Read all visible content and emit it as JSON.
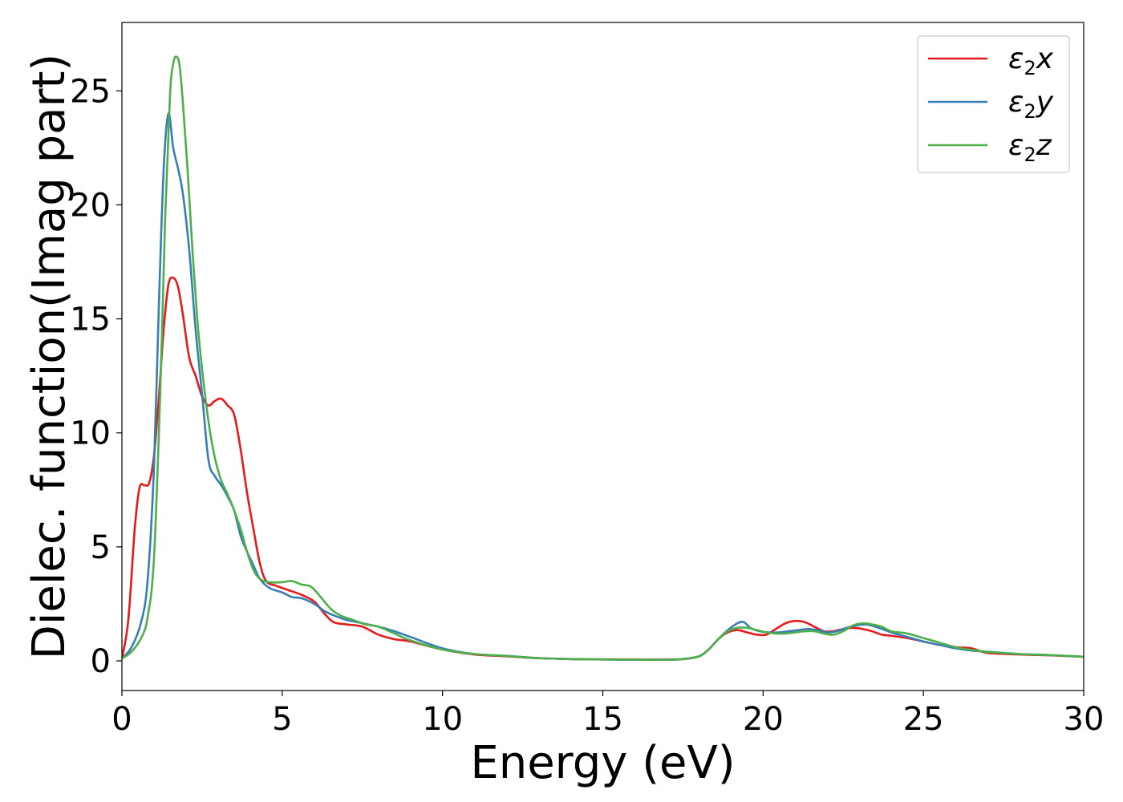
{
  "chart_data": {
    "type": "line",
    "xlabel": "Energy (eV)",
    "ylabel": "Dielec. function(Imag part)",
    "xlim": [
      0,
      30
    ],
    "ylim": [
      -1.3,
      28
    ],
    "xticks": [
      0,
      5,
      10,
      15,
      20,
      25,
      30
    ],
    "yticks": [
      0,
      5,
      10,
      15,
      20,
      25
    ],
    "grid": false,
    "legend_position": "top-right",
    "series": [
      {
        "name": "ε2x",
        "legend": {
          "base": "ε",
          "sub": "2",
          "var": "x"
        },
        "color": "#e41a1c",
        "x": [
          0,
          0.2,
          0.4,
          0.55,
          0.7,
          0.85,
          1.0,
          1.15,
          1.3,
          1.45,
          1.6,
          1.75,
          1.9,
          2.1,
          2.3,
          2.5,
          2.7,
          2.9,
          3.1,
          3.3,
          3.5,
          3.7,
          3.9,
          4.1,
          4.3,
          4.5,
          4.8,
          5.2,
          5.6,
          6.0,
          6.3,
          6.6,
          7.0,
          7.5,
          8.0,
          8.5,
          9.0,
          10,
          11,
          12,
          13,
          14,
          15,
          16,
          17,
          17.5,
          18,
          18.3,
          18.6,
          18.9,
          19.2,
          19.5,
          19.8,
          20.1,
          20.4,
          20.7,
          21.0,
          21.3,
          21.6,
          21.9,
          22.2,
          22.5,
          22.8,
          23.1,
          23.4,
          23.7,
          24.0,
          24.5,
          25,
          25.5,
          26,
          26.5,
          27,
          28,
          29,
          30
        ],
        "y": [
          0.1,
          1.8,
          5.8,
          7.6,
          7.7,
          7.8,
          9.0,
          11.5,
          14.5,
          16.5,
          16.8,
          16.4,
          15.2,
          13.3,
          12.5,
          11.6,
          11.2,
          11.4,
          11.5,
          11.2,
          10.8,
          9.3,
          7.4,
          5.8,
          4.3,
          3.5,
          3.3,
          3.1,
          2.9,
          2.6,
          2.1,
          1.7,
          1.6,
          1.5,
          1.15,
          0.95,
          0.85,
          0.5,
          0.28,
          0.2,
          0.12,
          0.08,
          0.07,
          0.06,
          0.06,
          0.08,
          0.2,
          0.5,
          0.95,
          1.25,
          1.35,
          1.25,
          1.15,
          1.15,
          1.4,
          1.65,
          1.75,
          1.7,
          1.5,
          1.3,
          1.3,
          1.4,
          1.45,
          1.4,
          1.3,
          1.15,
          1.1,
          1.0,
          0.85,
          0.7,
          0.6,
          0.55,
          0.35,
          0.28,
          0.24,
          0.18
        ]
      },
      {
        "name": "ε2y",
        "legend": {
          "base": "ε",
          "sub": "2",
          "var": "y"
        },
        "color": "#377eb8",
        "x": [
          0,
          0.3,
          0.6,
          0.8,
          1.0,
          1.15,
          1.3,
          1.45,
          1.6,
          1.75,
          1.9,
          2.1,
          2.3,
          2.5,
          2.7,
          2.9,
          3.1,
          3.3,
          3.5,
          3.7,
          3.9,
          4.1,
          4.3,
          4.6,
          5.0,
          5.3,
          5.6,
          6.0,
          6.3,
          6.6,
          7.0,
          7.5,
          8.0,
          8.5,
          9.0,
          10,
          11,
          12,
          13,
          14,
          15,
          16,
          17,
          17.5,
          18,
          18.3,
          18.6,
          18.9,
          19.2,
          19.4,
          19.6,
          19.9,
          20.2,
          20.5,
          20.8,
          21.1,
          21.4,
          21.7,
          22.0,
          22.3,
          22.6,
          22.9,
          23.2,
          23.5,
          23.8,
          24.1,
          24.5,
          25,
          25.5,
          26,
          26.5,
          27,
          28,
          29,
          30
        ],
        "y": [
          0.1,
          0.6,
          1.7,
          3.5,
          8.5,
          15.5,
          21.5,
          24.0,
          22.5,
          21.6,
          20.5,
          18.0,
          14.5,
          11.7,
          8.8,
          8.1,
          7.7,
          7.2,
          6.6,
          5.5,
          4.8,
          4.2,
          3.6,
          3.2,
          3.0,
          2.8,
          2.75,
          2.5,
          2.2,
          2.0,
          1.8,
          1.65,
          1.5,
          1.3,
          1.05,
          0.55,
          0.3,
          0.22,
          0.12,
          0.08,
          0.06,
          0.05,
          0.05,
          0.08,
          0.2,
          0.5,
          0.95,
          1.35,
          1.65,
          1.7,
          1.45,
          1.3,
          1.25,
          1.25,
          1.3,
          1.35,
          1.4,
          1.35,
          1.25,
          1.3,
          1.45,
          1.55,
          1.6,
          1.5,
          1.35,
          1.2,
          1.05,
          0.85,
          0.7,
          0.55,
          0.45,
          0.4,
          0.3,
          0.25,
          0.18
        ]
      },
      {
        "name": "ε2z",
        "legend": {
          "base": "ε",
          "sub": "2",
          "var": "z"
        },
        "color": "#4daf4a",
        "x": [
          0,
          0.3,
          0.6,
          0.8,
          1.0,
          1.2,
          1.35,
          1.5,
          1.6,
          1.7,
          1.8,
          1.9,
          2.05,
          2.2,
          2.35,
          2.5,
          2.7,
          2.9,
          3.1,
          3.3,
          3.5,
          3.7,
          3.9,
          4.1,
          4.3,
          4.6,
          5.0,
          5.3,
          5.6,
          5.9,
          6.2,
          6.5,
          6.8,
          7.2,
          7.6,
          8.0,
          8.5,
          9.0,
          10,
          11,
          12,
          13,
          14,
          15,
          16,
          17,
          17.5,
          18,
          18.3,
          18.6,
          18.9,
          19.2,
          19.5,
          19.8,
          20.1,
          20.4,
          20.7,
          21.0,
          21.3,
          21.6,
          21.9,
          22.2,
          22.5,
          22.8,
          23.1,
          23.4,
          23.7,
          24.0,
          24.5,
          25,
          25.5,
          26,
          26.5,
          27,
          28,
          29,
          30
        ],
        "y": [
          0.1,
          0.4,
          1.0,
          1.9,
          4.5,
          12.0,
          19.5,
          24.8,
          26.2,
          26.5,
          26.1,
          24.5,
          21.5,
          18.0,
          15.0,
          12.8,
          10.5,
          8.9,
          7.9,
          7.3,
          6.6,
          5.8,
          4.8,
          4.0,
          3.6,
          3.45,
          3.45,
          3.5,
          3.35,
          3.25,
          2.8,
          2.3,
          2.0,
          1.8,
          1.6,
          1.5,
          1.2,
          0.9,
          0.5,
          0.3,
          0.22,
          0.12,
          0.08,
          0.06,
          0.05,
          0.05,
          0.08,
          0.2,
          0.5,
          0.95,
          1.3,
          1.45,
          1.45,
          1.35,
          1.25,
          1.2,
          1.2,
          1.25,
          1.3,
          1.3,
          1.2,
          1.15,
          1.3,
          1.55,
          1.65,
          1.6,
          1.5,
          1.3,
          1.2,
          1.0,
          0.8,
          0.6,
          0.48,
          0.4,
          0.3,
          0.25,
          0.18
        ]
      }
    ]
  }
}
